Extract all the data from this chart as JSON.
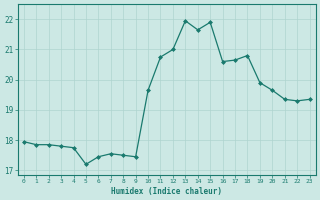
{
  "x": [
    0,
    1,
    2,
    3,
    4,
    5,
    6,
    7,
    8,
    9,
    10,
    11,
    12,
    13,
    14,
    15,
    16,
    17,
    18,
    19,
    20,
    21,
    22,
    23
  ],
  "y": [
    17.95,
    17.85,
    17.85,
    17.8,
    17.75,
    17.2,
    17.45,
    17.55,
    17.5,
    17.45,
    19.65,
    20.75,
    21.0,
    21.95,
    21.65,
    21.9,
    20.6,
    20.65,
    20.8,
    19.9,
    19.65,
    19.35,
    19.3,
    19.35
  ],
  "line_color": "#1a7a6e",
  "marker_color": "#1a7a6e",
  "bg_color": "#cce8e4",
  "grid_color": "#afd4cf",
  "xlabel": "Humidex (Indice chaleur)",
  "ylim": [
    16.85,
    22.5
  ],
  "xlim": [
    -0.5,
    23.5
  ],
  "yticks": [
    17,
    18,
    19,
    20,
    21,
    22
  ],
  "xticks": [
    0,
    1,
    2,
    3,
    4,
    5,
    6,
    7,
    8,
    9,
    10,
    11,
    12,
    13,
    14,
    15,
    16,
    17,
    18,
    19,
    20,
    21,
    22,
    23
  ]
}
